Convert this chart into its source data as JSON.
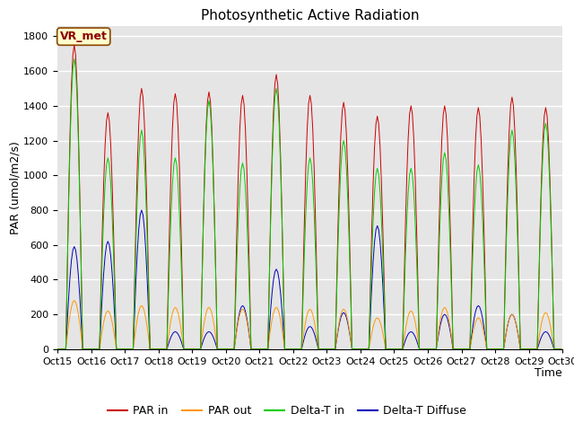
{
  "title": "Photosynthetic Active Radiation",
  "xlabel": "Time",
  "ylabel": "PAR (umol/m2/s)",
  "n_days": 15,
  "hours_per_day": 24,
  "par_in_peaks": [
    1750,
    1360,
    1500,
    1470,
    1480,
    1460,
    1580,
    1460,
    1420,
    1340,
    1400,
    1400,
    1390,
    1450,
    1390
  ],
  "par_out_peaks": [
    280,
    220,
    250,
    240,
    240,
    230,
    240,
    230,
    230,
    180,
    220,
    240,
    180,
    200,
    210
  ],
  "delta_t_in_peaks": [
    1670,
    1100,
    1260,
    1100,
    1430,
    1070,
    1500,
    1100,
    1200,
    1040,
    1040,
    1130,
    1060,
    1260,
    1300
  ],
  "delta_t_diffuse_peaks": [
    590,
    620,
    800,
    100,
    100,
    250,
    460,
    130,
    210,
    710,
    100,
    200,
    250,
    200,
    100
  ],
  "colors": {
    "par_in": "#cc0000",
    "par_out": "#ff9900",
    "delta_t_in": "#00cc00",
    "delta_t_diffuse": "#0000bb"
  },
  "ylim": [
    0,
    1860
  ],
  "yticks": [
    0,
    200,
    400,
    600,
    800,
    1000,
    1200,
    1400,
    1600,
    1800
  ],
  "bg_color": "#e5e5e5",
  "fig_bg_color": "#ffffff",
  "legend_labels": [
    "PAR in",
    "PAR out",
    "Delta-T in",
    "Delta-T Diffuse"
  ],
  "station_label": "VR_met",
  "title_fontsize": 11,
  "label_fontsize": 9,
  "tick_fontsize": 8,
  "legend_fontsize": 9,
  "x_tick_labels": [
    "Oct 15",
    "Oct 16",
    "Oct 17",
    "Oct 18",
    "Oct 19",
    "Oct 20",
    "Oct 21",
    "Oct 22",
    "Oct 23",
    "Oct 24",
    "Oct 25",
    "Oct 26",
    "Oct 27",
    "Oct 28",
    "Oct 29",
    "Oct 30"
  ]
}
